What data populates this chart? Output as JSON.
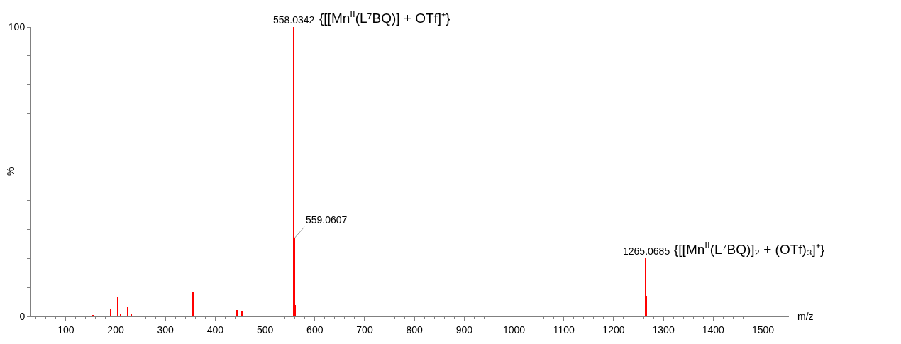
{
  "chart_data": {
    "type": "bar",
    "xlabel": "m/z",
    "ylabel": "%",
    "x": [
      155,
      190,
      204,
      210,
      224,
      231,
      355,
      444,
      454,
      558,
      559,
      560,
      1265,
      1266
    ],
    "values": [
      0.5,
      2.6,
      6.6,
      1,
      3.1,
      1,
      8.5,
      2.1,
      1.7,
      100,
      27,
      4,
      20,
      7
    ],
    "color": "#ff0000",
    "xlim": [
      29,
      1552
    ],
    "xticks": [
      100,
      200,
      300,
      400,
      500,
      600,
      700,
      800,
      900,
      1000,
      1100,
      1200,
      1300,
      1400,
      1500
    ],
    "ylim": [
      0,
      100
    ],
    "yticks": [
      0,
      {
        "value": 10,
        "label": null
      },
      {
        "value": 20,
        "label": null
      },
      {
        "value": 30,
        "label": null
      },
      {
        "value": 40,
        "label": null
      },
      {
        "value": 50,
        "label": null
      },
      {
        "value": 60,
        "label": null
      },
      {
        "value": 70,
        "label": null
      },
      {
        "value": 80,
        "label": null
      },
      {
        "value": 90,
        "label": null
      },
      100
    ],
    "annotations": [
      {
        "text": "558.0342 {[[Mn$^{II}$(L⁷BQ)] + OTf]⁺}",
        "x": 558,
        "y": 100
      },
      {
        "text": "559.0607",
        "x": 559,
        "y": 27
      },
      {
        "text": "1265.0685 {[[Mn$^{II}$(L⁷BQ)]₂ + (OTf)₃]⁺}",
        "x": 1265,
        "y": 20
      }
    ],
    "legend": false
  }
}
